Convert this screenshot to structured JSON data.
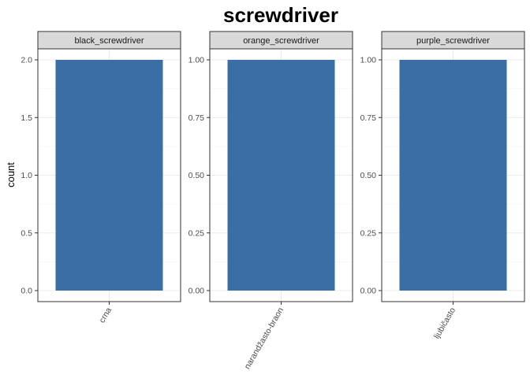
{
  "chart_data": {
    "type": "bar",
    "title": "screwdriver",
    "ylabel": "count",
    "xlabel": "",
    "bar_color": "#3A6EA5",
    "grid": true,
    "facets": [
      {
        "strip": "black_screwdriver",
        "categories": [
          "crna"
        ],
        "values": [
          2
        ],
        "ylim": [
          0,
          2
        ],
        "yticks": [
          0,
          0.5,
          1,
          1.5,
          2
        ],
        "ytick_labels": [
          "0.0",
          "0.5",
          "1.0",
          "1.5",
          "2.0"
        ]
      },
      {
        "strip": "orange_screwdriver",
        "categories": [
          "narandžasto-braon"
        ],
        "values": [
          1
        ],
        "ylim": [
          0,
          1
        ],
        "yticks": [
          0,
          0.25,
          0.5,
          0.75,
          1
        ],
        "ytick_labels": [
          "0.00",
          "0.25",
          "0.50",
          "0.75",
          "1.00"
        ]
      },
      {
        "strip": "purple_screwdriver",
        "categories": [
          "ljubičasto"
        ],
        "values": [
          1
        ],
        "ylim": [
          0,
          1
        ],
        "yticks": [
          0,
          0.25,
          0.5,
          0.75,
          1
        ],
        "ytick_labels": [
          "0.00",
          "0.25",
          "0.50",
          "0.75",
          "1.00"
        ]
      }
    ]
  }
}
